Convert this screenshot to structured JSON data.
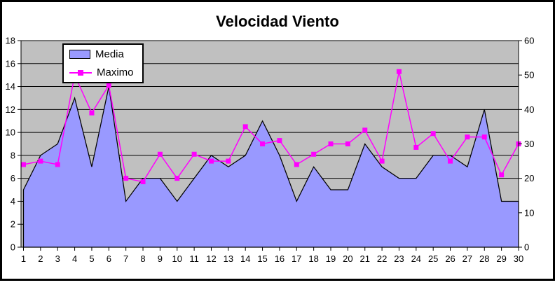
{
  "title": "Velocidad Viento",
  "legend": {
    "media_label": "Media",
    "maximo_label": "Maximo"
  },
  "colors": {
    "chart_background": "#FFFFFF",
    "plot_background": "#C0C0C0",
    "gridline": "#000000",
    "axis_line": "#000000",
    "text": "#000000",
    "media_fill": "#9999FF",
    "media_outline": "#000000",
    "maximo_line": "#FF00FF",
    "legend_border": "#000000",
    "outer_border": "#000000"
  },
  "chart_data": {
    "type": "combo",
    "title": "Velocidad Viento",
    "grid": true,
    "legend_position": "top-left-inside",
    "categories": [
      1,
      2,
      3,
      4,
      5,
      6,
      7,
      8,
      9,
      10,
      11,
      12,
      13,
      14,
      15,
      16,
      17,
      18,
      19,
      20,
      21,
      22,
      23,
      24,
      25,
      26,
      27,
      28,
      29,
      30
    ],
    "x_tick_labels": [
      "1",
      "2",
      "3",
      "4",
      "5",
      "6",
      "7",
      "8",
      "9",
      "10",
      "11",
      "12",
      "13",
      "14",
      "15",
      "16",
      "17",
      "18",
      "19",
      "20",
      "21",
      "22",
      "23",
      "24",
      "25",
      "26",
      "27",
      "28",
      "29",
      "30"
    ],
    "series": [
      {
        "name": "Media",
        "type": "area",
        "axis": "left",
        "values": [
          5,
          8,
          9,
          13,
          7,
          14,
          4,
          6,
          6,
          4,
          6,
          8,
          7,
          8,
          11,
          8,
          4,
          7,
          5,
          5,
          9,
          7,
          6,
          6,
          8,
          8,
          7,
          12,
          4,
          4
        ]
      },
      {
        "name": "Maximo",
        "type": "line",
        "marker": "square",
        "axis": "right",
        "values": [
          24,
          25,
          24,
          50,
          39,
          47,
          20,
          19,
          27,
          20,
          27,
          25,
          25,
          35,
          30,
          31,
          24,
          27,
          30,
          30,
          34,
          25,
          51,
          29,
          33,
          25,
          32,
          32,
          21,
          30
        ]
      }
    ],
    "left_axis": {
      "min": 0,
      "max": 18,
      "step": 2,
      "ticks": [
        0,
        2,
        4,
        6,
        8,
        10,
        12,
        14,
        16,
        18
      ],
      "tick_labels": [
        "0",
        "2",
        "4",
        "6",
        "8",
        "10",
        "12",
        "14",
        "16",
        "18"
      ]
    },
    "right_axis": {
      "min": 0,
      "max": 60,
      "step": 10,
      "ticks": [
        0,
        10,
        20,
        30,
        40,
        50,
        60
      ],
      "tick_labels": [
        "0",
        "10",
        "20",
        "30",
        "40",
        "50",
        "60"
      ]
    }
  }
}
